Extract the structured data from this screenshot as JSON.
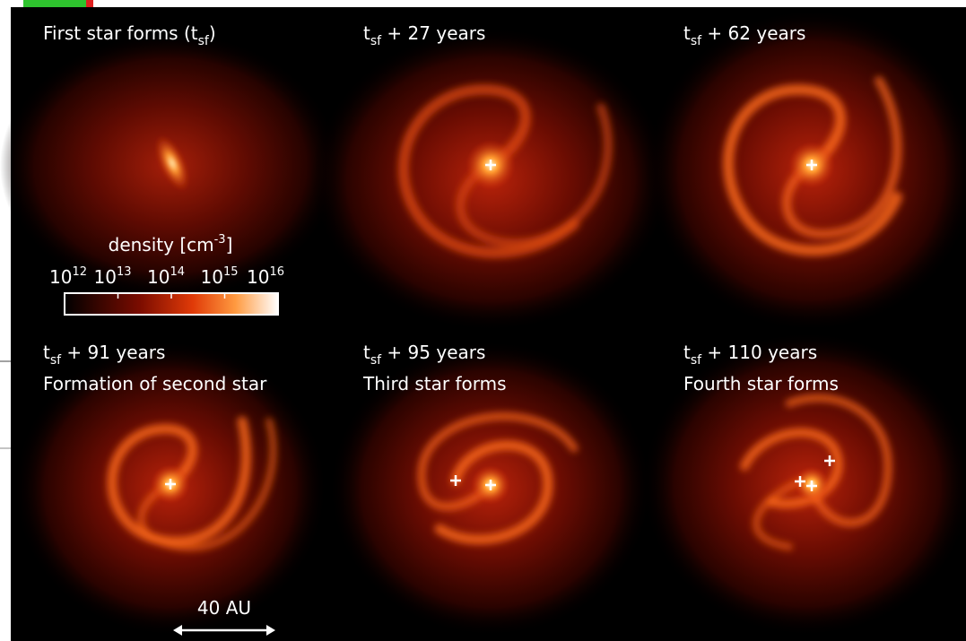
{
  "panels": [
    {
      "label": {
        "pre": "First star forms (t",
        "sub": "sf",
        "post": ")"
      }
    },
    {
      "label": {
        "pre": "t",
        "sub": "sf",
        "post": " + 27 years"
      }
    },
    {
      "label": {
        "pre": "t",
        "sub": "sf",
        "post": " + 62 years"
      }
    },
    {
      "label": {
        "pre": "t",
        "sub": "sf",
        "post": " + 91 years"
      },
      "caption": "Formation of second star"
    },
    {
      "label": {
        "pre": "t",
        "sub": "sf",
        "post": " + 95 years"
      },
      "caption": "Third star forms"
    },
    {
      "label": {
        "pre": "t",
        "sub": "sf",
        "post": " + 110 years"
      },
      "caption": "Fourth star forms"
    }
  ],
  "colorbar": {
    "label": {
      "pre": "density [cm",
      "sup": "-3",
      "post": "]"
    },
    "ticks": [
      {
        "base": "10",
        "exp": "12"
      },
      {
        "base": "10",
        "exp": "13"
      },
      {
        "base": "10",
        "exp": "14"
      },
      {
        "base": "10",
        "exp": "15"
      },
      {
        "base": "10",
        "exp": "16"
      }
    ]
  },
  "scale_bar": {
    "label": "40 AU"
  }
}
